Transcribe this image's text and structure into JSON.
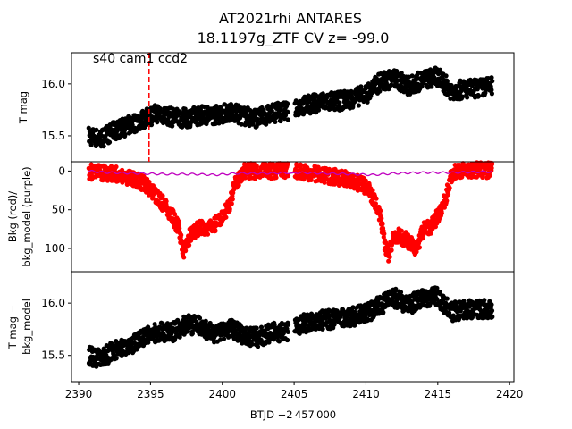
{
  "chart_data": {
    "type": "scatter",
    "title_line1": "AT2021rhi  ANTARES",
    "title_line2": "18.1197g_ZTF CV z= -99.0",
    "xlabel": "BTJD −2 457 000",
    "xlim": [
      2389.5,
      2420.3
    ],
    "xticks": [
      "2390",
      "2395",
      "2400",
      "2405",
      "2410",
      "2415",
      "2420"
    ],
    "annotation": "s40 cam1 ccd2",
    "marker_x": 2394.9,
    "panels": [
      {
        "name": "tmag",
        "ylabel_lines": [
          "T mag"
        ],
        "ylim": [
          16.3,
          15.25
        ],
        "yticks": [
          "15.5",
          "16.0"
        ],
        "series": [
          {
            "color": "#000000",
            "x": [
              2390.7,
              2391.5,
              2392.5,
              2393.5,
              2394.5,
              2395.5,
              2396.5,
              2397.5,
              2398.5,
              2399.5,
              2400.5,
              2401.5,
              2402.5,
              2403.5,
              2404.5,
              2405.1,
              2406,
              2407,
              2408,
              2409,
              2410,
              2411,
              2412,
              2413,
              2414,
              2415,
              2416,
              2417,
              2418,
              2418.8
            ],
            "y": [
              15.5,
              15.47,
              15.55,
              15.6,
              15.66,
              15.72,
              15.68,
              15.67,
              15.7,
              15.7,
              15.73,
              15.69,
              15.67,
              15.72,
              15.74,
              15.78,
              15.8,
              15.83,
              15.83,
              15.86,
              15.9,
              16.02,
              16.05,
              15.98,
              16.04,
              16.07,
              15.93,
              15.95,
              15.96,
              15.98
            ],
            "spread": 0.09
          }
        ]
      },
      {
        "name": "bkg",
        "ylabel_lines": [
          "Bkg (red)/",
          "bkg_model (purple)"
        ],
        "ylim": [
          -12,
          130
        ],
        "yticks": [
          "0",
          "50",
          "100"
        ],
        "series": [
          {
            "color": "#ff0000",
            "x": [
              2390.7,
              2391.5,
              2392.5,
              2393.5,
              2394.5,
              2395,
              2395.5,
              2396,
              2396.5,
              2397,
              2397.3,
              2397.6,
              2398,
              2398.5,
              2399,
              2399.5,
              2400,
              2400.5,
              2401,
              2401.5,
              2402,
              2403,
              2404,
              2405.1,
              2406,
              2407,
              2408,
              2409,
              2410,
              2410.5,
              2411,
              2411.3,
              2411.6,
              2412,
              2412.5,
              2413,
              2413.5,
              2414,
              2414.5,
              2415,
              2415.5,
              2416,
              2416.5,
              2417,
              2418,
              2418.8
            ],
            "y": [
              1,
              2,
              4,
              8,
              16,
              24,
              34,
              45,
              58,
              75,
              105,
              88,
              78,
              72,
              75,
              68,
              62,
              42,
              12,
              1,
              0,
              0,
              0,
              0,
              2,
              5,
              8,
              12,
              20,
              34,
              58,
              95,
              108,
              82,
              85,
              92,
              100,
              76,
              72,
              58,
              38,
              2,
              -1,
              -2,
              -1,
              -1
            ],
            "spread": 10
          },
          {
            "color": "#bf00bf",
            "line": true,
            "x": [
              2390.7,
              2392,
              2394,
              2396,
              2398,
              2399.5,
              2401,
              2403,
              2405.1,
              2407,
              2409,
              2410.5,
              2412,
              2414,
              2416,
              2418,
              2418.8
            ],
            "y": [
              0,
              2,
              3,
              4,
              4,
              5,
              3,
              3,
              2,
              3,
              4,
              5,
              3,
              2,
              2,
              1,
              1
            ],
            "spread": 0
          }
        ]
      },
      {
        "name": "detrended",
        "ylabel_lines": [
          "T mag −",
          "bkg_model"
        ],
        "ylim": [
          16.3,
          15.25
        ],
        "yticks": [
          "15.5",
          "16.0"
        ],
        "series": [
          {
            "color": "#000000",
            "x": [
              2390.7,
              2391.5,
              2392.5,
              2393.5,
              2394.5,
              2395.5,
              2396.5,
              2397.5,
              2398.5,
              2399.5,
              2400.5,
              2401.5,
              2402.5,
              2403.5,
              2404.5,
              2405.1,
              2406,
              2407,
              2408,
              2409,
              2410,
              2411,
              2412,
              2413,
              2414,
              2415,
              2416,
              2417,
              2418,
              2418.8
            ],
            "y": [
              15.5,
              15.47,
              15.55,
              15.6,
              15.66,
              15.73,
              15.72,
              15.8,
              15.78,
              15.7,
              15.77,
              15.69,
              15.67,
              15.72,
              15.73,
              15.78,
              15.82,
              15.84,
              15.85,
              15.87,
              15.9,
              15.98,
              16.05,
              15.98,
              16.06,
              16.06,
              15.92,
              15.94,
              15.95,
              15.94
            ],
            "spread": 0.09
          }
        ]
      }
    ]
  }
}
